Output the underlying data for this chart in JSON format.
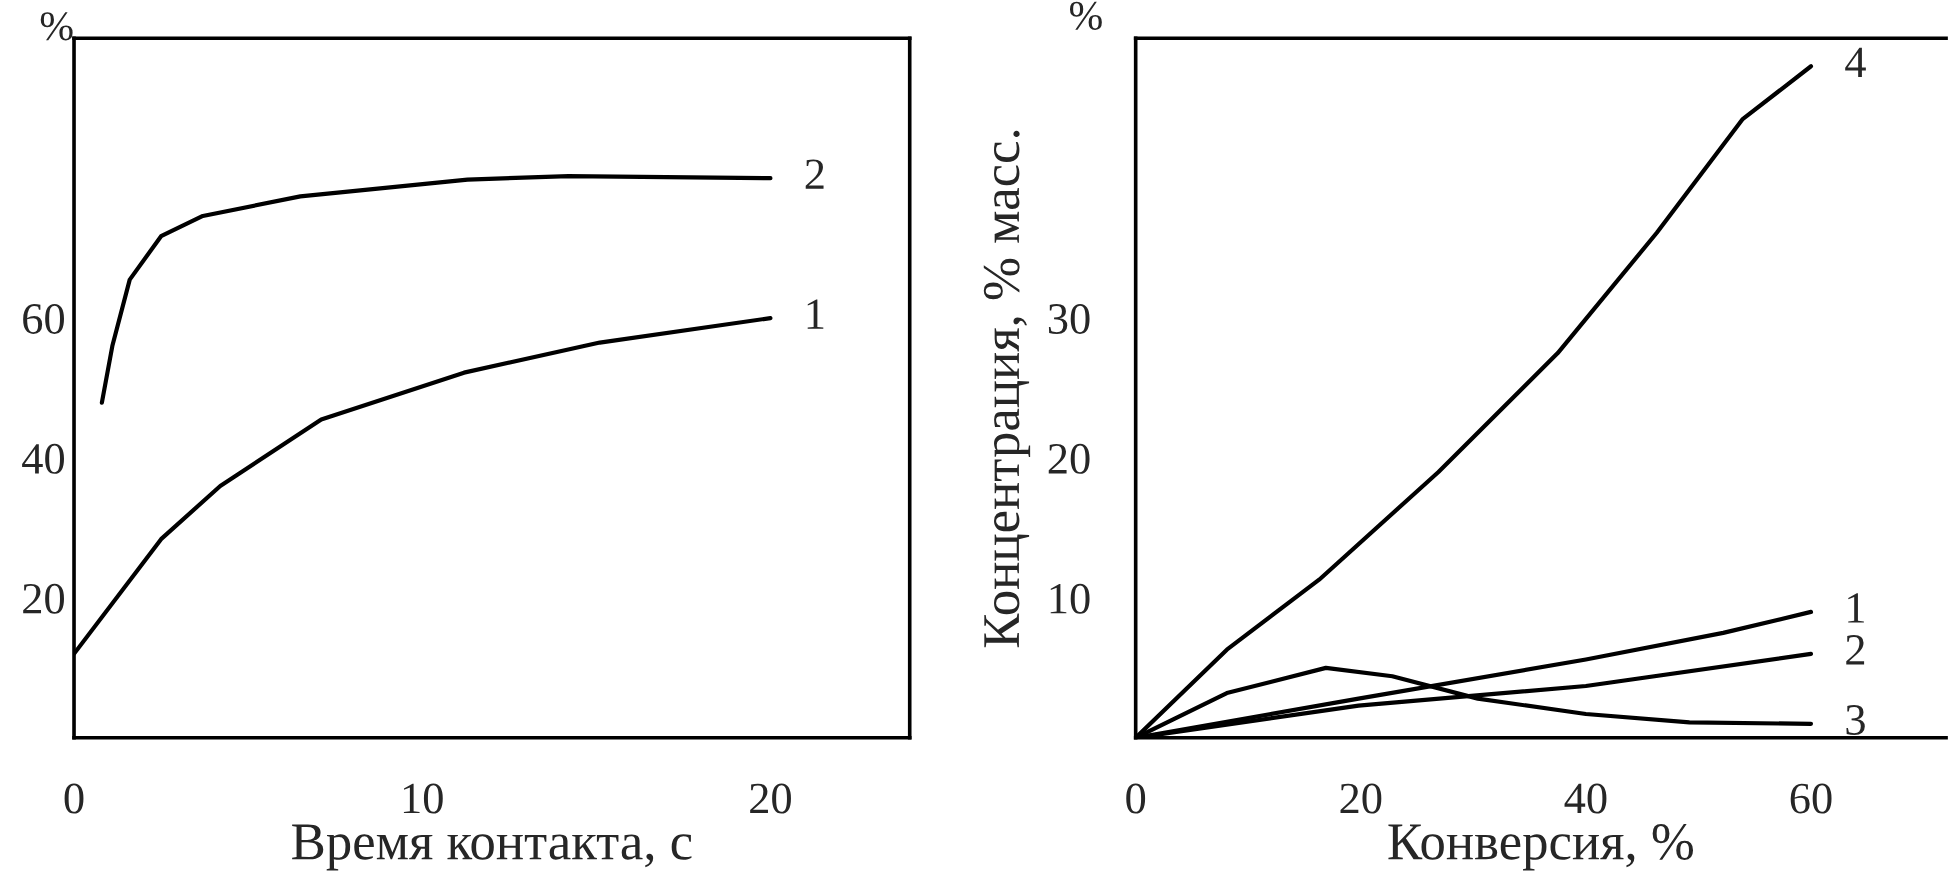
{
  "chart_data": [
    {
      "type": "line",
      "ylabel": "%",
      "xlabel": "Время контакта, с",
      "xlim": [
        0,
        24
      ],
      "xticks": [
        0,
        10,
        20
      ],
      "ylim": [
        0,
        100
      ],
      "yticks": [
        20,
        40,
        60
      ],
      "grid": false,
      "legend": false,
      "series": [
        {
          "name": "1",
          "color": "#000000",
          "x": [
            0,
            2.5,
            4.2,
            7.1,
            11.2,
            15.1,
            20
          ],
          "values": [
            12,
            28.4,
            36,
            45.5,
            52.2,
            56.5,
            60
          ]
        },
        {
          "name": "2",
          "color": "#000000",
          "x": [
            0.8,
            1.1,
            1.6,
            2.5,
            3.7,
            6.5,
            11.3,
            14.2,
            20
          ],
          "values": [
            47.9,
            56,
            65.5,
            71.7,
            74.6,
            77.4,
            79.8,
            80.3,
            80
          ]
        }
      ]
    },
    {
      "type": "line",
      "ylabel": "Концентрация, % масс.",
      "xlabel": "Конверсия, %",
      "annotations": [
        "%"
      ],
      "xlim": [
        0,
        72
      ],
      "xticks": [
        0,
        20,
        40,
        60
      ],
      "ylim": [
        0,
        50
      ],
      "yticks": [
        10,
        20,
        30
      ],
      "grid": false,
      "legend": false,
      "series": [
        {
          "name": "1",
          "color": "#000000",
          "x": [
            0,
            19.8,
            40,
            52.2,
            60
          ],
          "values": [
            0,
            2.8,
            5.6,
            7.5,
            9
          ]
        },
        {
          "name": "2",
          "color": "#000000",
          "x": [
            0,
            19.8,
            40,
            60
          ],
          "values": [
            0,
            2.3,
            3.7,
            6
          ]
        },
        {
          "name": "3",
          "color": "#000000",
          "x": [
            0,
            8.1,
            16.9,
            22.8,
            30.4,
            40,
            49.2,
            60
          ],
          "values": [
            0,
            3.2,
            5,
            4.4,
            2.8,
            1.7,
            1.1,
            1
          ]
        },
        {
          "name": "4",
          "color": "#000000",
          "x": [
            0,
            8.1,
            16.3,
            26.9,
            37.5,
            46.3,
            53.9,
            60
          ],
          "values": [
            0,
            6.3,
            11.3,
            19,
            27.5,
            36.1,
            44.2,
            48
          ]
        }
      ]
    }
  ]
}
